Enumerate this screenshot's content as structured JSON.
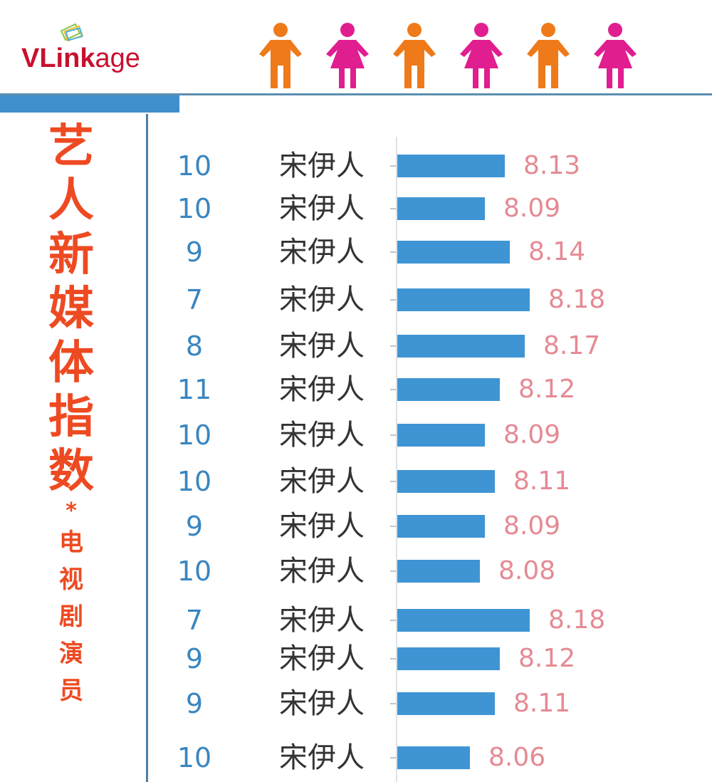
{
  "header": {
    "logo": {
      "bold": "VLink",
      "light": "age",
      "text": "VLinkage"
    },
    "people_icons": [
      "male-icon",
      "female-icon",
      "male-icon",
      "female-icon",
      "male-icon",
      "female-icon"
    ]
  },
  "sidebar_title": {
    "main": [
      "艺",
      "人",
      "新",
      "媒",
      "体",
      "指",
      "数"
    ],
    "separator": "*",
    "sub": [
      "电",
      "视",
      "剧",
      "演",
      "员"
    ]
  },
  "colors": {
    "title": "#ee4a22",
    "bar": "#3f95d3",
    "rank": "#3a86c0",
    "value": "#e58a94",
    "male": "#ee7a1a",
    "female": "#e01e90",
    "accent_bar": "#3f8fcd"
  },
  "rows": [
    {
      "rank": "10",
      "name": "宋伊人",
      "value": "8.13"
    },
    {
      "rank": "10",
      "name": "宋伊人",
      "value": "8.09"
    },
    {
      "rank": "9",
      "name": "宋伊人",
      "value": "8.14"
    },
    {
      "rank": "7",
      "name": "宋伊人",
      "value": "8.18"
    },
    {
      "rank": "8",
      "name": "宋伊人",
      "value": "8.17"
    },
    {
      "rank": "11",
      "name": "宋伊人",
      "value": "8.12"
    },
    {
      "rank": "10",
      "name": "宋伊人",
      "value": "8.09"
    },
    {
      "rank": "10",
      "name": "宋伊人",
      "value": "8.11"
    },
    {
      "rank": "9",
      "name": "宋伊人",
      "value": "8.09"
    },
    {
      "rank": "10",
      "name": "宋伊人",
      "value": "8.08"
    },
    {
      "rank": "7",
      "name": "宋伊人",
      "value": "8.18"
    },
    {
      "rank": "9",
      "name": "宋伊人",
      "value": "8.12"
    },
    {
      "rank": "9",
      "name": "宋伊人",
      "value": "8.11"
    },
    {
      "rank": "10",
      "name": "宋伊人",
      "value": "8.06"
    }
  ],
  "chart_data": {
    "type": "bar",
    "orientation": "horizontal",
    "title": "艺人新媒体指数 * 电视剧演员",
    "categories": [
      "宋伊人",
      "宋伊人",
      "宋伊人",
      "宋伊人",
      "宋伊人",
      "宋伊人",
      "宋伊人",
      "宋伊人",
      "宋伊人",
      "宋伊人",
      "宋伊人",
      "宋伊人",
      "宋伊人",
      "宋伊人"
    ],
    "ranks": [
      10,
      10,
      9,
      7,
      8,
      11,
      10,
      10,
      9,
      10,
      7,
      9,
      9,
      10
    ],
    "values": [
      8.13,
      8.09,
      8.14,
      8.18,
      8.17,
      8.12,
      8.09,
      8.11,
      8.09,
      8.08,
      8.18,
      8.12,
      8.11,
      8.06
    ],
    "xlabel": "",
    "ylabel": "",
    "grid": false,
    "legend": "none",
    "data_labels": true
  }
}
